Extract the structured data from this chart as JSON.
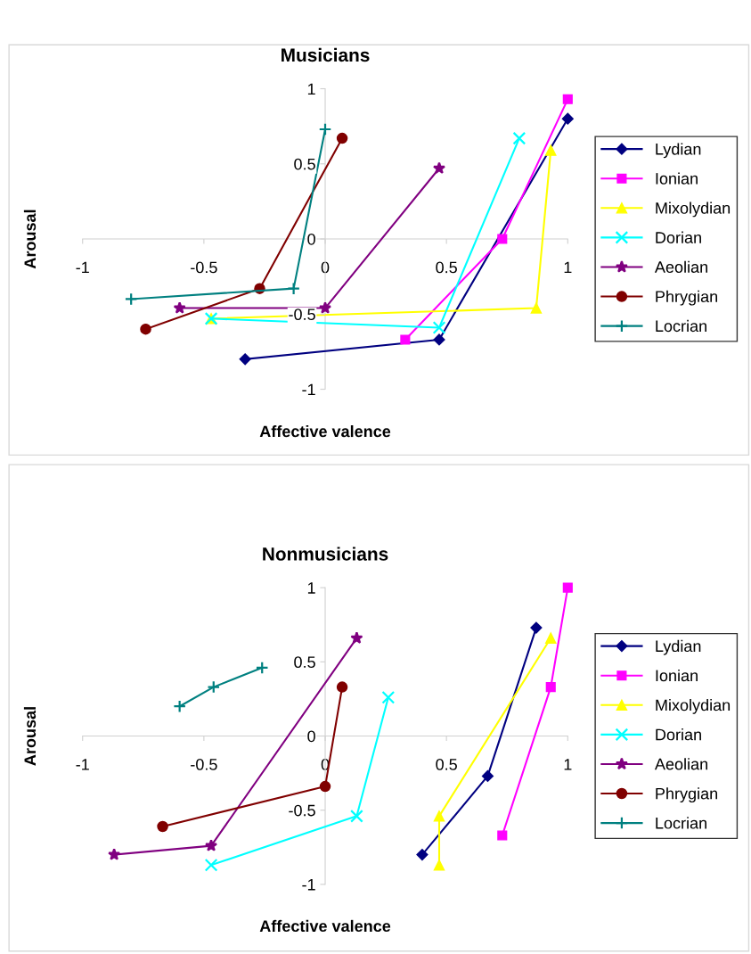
{
  "chart_data": [
    {
      "type": "line",
      "title": "Musicians",
      "xlabel": "Affective valence",
      "ylabel": "Arousal",
      "xlim": [
        -1,
        1
      ],
      "ylim": [
        -1,
        1
      ],
      "xticks": [
        -1,
        -0.5,
        0,
        0.5,
        1
      ],
      "yticks": [
        -1,
        -0.5,
        0,
        0.5,
        1
      ],
      "legend": "right",
      "series": [
        {
          "name": "Lydian",
          "color": "#000080",
          "marker": "diamond",
          "x": [
            -0.33,
            0.47,
            1.0
          ],
          "values": [
            -0.8,
            -0.67,
            0.8
          ]
        },
        {
          "name": "Ionian",
          "color": "#ff00ff",
          "marker": "square",
          "x": [
            0.33,
            0.73,
            1.0
          ],
          "values": [
            -0.67,
            0,
            0.93
          ]
        },
        {
          "name": "Mixolydian",
          "color": "#ffff00",
          "marker": "triangle",
          "x": [
            -0.47,
            0.87,
            0.93
          ],
          "values": [
            -0.53,
            -0.46,
            0.59
          ]
        },
        {
          "name": "Dorian",
          "color": "#00ffff",
          "marker": "cross",
          "x": [
            -0.47,
            0.47,
            0.8
          ],
          "values": [
            -0.53,
            -0.59,
            0.67
          ]
        },
        {
          "name": "Aeolian",
          "color": "#800080",
          "marker": "star",
          "x": [
            -0.6,
            0,
            0.47
          ],
          "values": [
            -0.46,
            -0.46,
            0.47
          ]
        },
        {
          "name": "Phrygian",
          "color": "#800000",
          "marker": "circle",
          "x": [
            -0.74,
            -0.27,
            0.07
          ],
          "values": [
            -0.6,
            -0.33,
            0.67
          ]
        },
        {
          "name": "Locrian",
          "color": "#008080",
          "marker": "plus",
          "x": [
            -0.8,
            -0.13,
            0
          ],
          "values": [
            -0.4,
            -0.33,
            0.73
          ]
        }
      ]
    },
    {
      "type": "line",
      "title": "Nonmusicians",
      "xlabel": "Affective valence",
      "ylabel": "Arousal",
      "xlim": [
        -1,
        1
      ],
      "ylim": [
        -1,
        1
      ],
      "xticks": [
        -1,
        -0.5,
        0,
        0.5,
        1
      ],
      "yticks": [
        -1,
        -0.5,
        0,
        0.5,
        1
      ],
      "legend": "right",
      "series": [
        {
          "name": "Lydian",
          "color": "#000080",
          "marker": "diamond",
          "x": [
            0.4,
            0.67,
            0.87
          ],
          "values": [
            -0.8,
            -0.27,
            0.73
          ]
        },
        {
          "name": "Ionian",
          "color": "#ff00ff",
          "marker": "square",
          "x": [
            0.73,
            0.93,
            1.0
          ],
          "values": [
            -0.67,
            0.33,
            1.0
          ]
        },
        {
          "name": "Mixolydian",
          "color": "#ffff00",
          "marker": "triangle",
          "x": [
            0.47,
            0.47,
            0.93
          ],
          "values": [
            -0.87,
            -0.54,
            0.66
          ]
        },
        {
          "name": "Dorian",
          "color": "#00ffff",
          "marker": "cross",
          "x": [
            -0.47,
            0.13,
            0.26
          ],
          "values": [
            -0.87,
            -0.54,
            0.26
          ]
        },
        {
          "name": "Aeolian",
          "color": "#800080",
          "marker": "star",
          "x": [
            -0.87,
            -0.47,
            0.13
          ],
          "values": [
            -0.8,
            -0.74,
            0.66
          ]
        },
        {
          "name": "Phrygian",
          "color": "#800000",
          "marker": "circle",
          "x": [
            -0.67,
            0,
            0.07
          ],
          "values": [
            -0.61,
            -0.34,
            0.33
          ]
        },
        {
          "name": "Locrian",
          "color": "#008080",
          "marker": "plus",
          "x": [
            -0.6,
            -0.46,
            -0.26
          ],
          "values": [
            0.2,
            0.33,
            0.46
          ]
        }
      ]
    }
  ]
}
